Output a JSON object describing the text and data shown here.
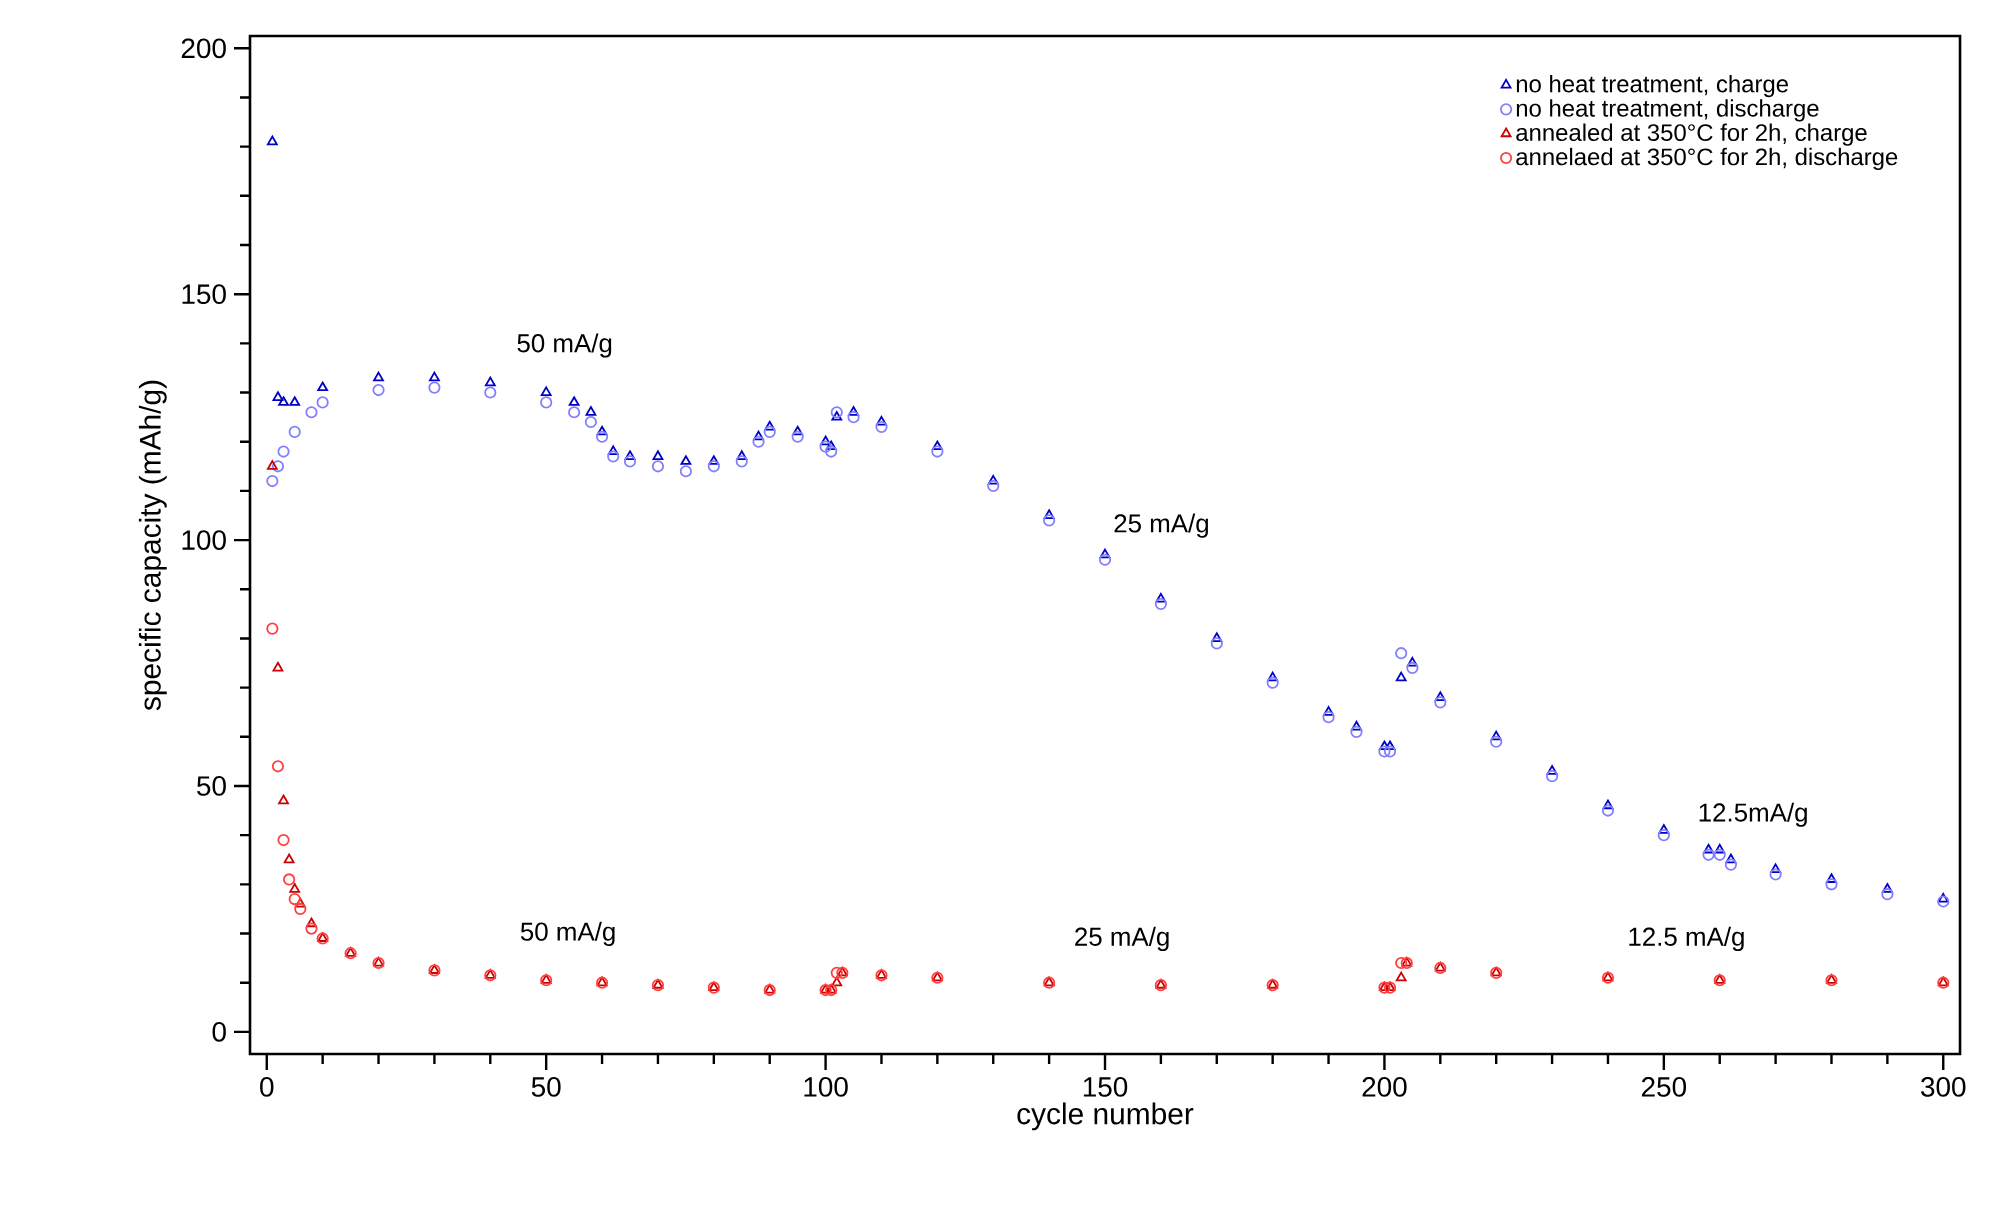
{
  "chart_data": {
    "type": "scatter",
    "xlabel": "cycle number",
    "ylabel": "specific capacity (mAh/g)",
    "xlim": [
      -3,
      303
    ],
    "ylim": [
      -4.5,
      202.5
    ],
    "xticks": [
      0,
      50,
      100,
      150,
      200,
      250,
      300
    ],
    "yticks": [
      0,
      50,
      100,
      150,
      200
    ],
    "legend": "top right",
    "grid": false,
    "series": [
      {
        "name": "no heat treatment, charge",
        "color": "#0000c8",
        "marker": "triangle",
        "x": [
          1,
          2,
          3,
          5,
          10,
          20,
          30,
          40,
          50,
          55,
          58,
          60,
          62,
          65,
          70,
          75,
          80,
          85,
          88,
          90,
          95,
          100,
          101,
          102,
          105,
          110,
          120,
          130,
          140,
          150,
          160,
          170,
          180,
          190,
          195,
          200,
          201,
          203,
          205,
          210,
          220,
          230,
          240,
          250,
          258,
          260,
          262,
          270,
          280,
          290,
          300
        ],
        "values": [
          181,
          129,
          128,
          128,
          131,
          133,
          133,
          132,
          130,
          128,
          126,
          122,
          118,
          117,
          117,
          116,
          116,
          117,
          121,
          123,
          122,
          120,
          119,
          125,
          126,
          124,
          119,
          112,
          105,
          97,
          88,
          80,
          72,
          65,
          62,
          58,
          58,
          72,
          75,
          68,
          60,
          53,
          46,
          41,
          37,
          37,
          35,
          33,
          31,
          29,
          27
        ]
      },
      {
        "name": "no heat treatment, discharge",
        "color": "#8080ff",
        "marker": "circle",
        "x": [
          1,
          2,
          3,
          5,
          8,
          10,
          20,
          30,
          40,
          50,
          55,
          58,
          60,
          62,
          65,
          70,
          75,
          80,
          85,
          88,
          90,
          95,
          100,
          101,
          102,
          105,
          110,
          120,
          130,
          140,
          150,
          160,
          170,
          180,
          190,
          195,
          200,
          201,
          203,
          205,
          210,
          220,
          230,
          240,
          250,
          258,
          260,
          262,
          270,
          280,
          290,
          300
        ],
        "values": [
          112,
          115,
          118,
          122,
          126,
          128,
          130.5,
          131,
          130,
          128,
          126,
          124,
          121,
          117,
          116,
          115,
          114,
          115,
          116,
          120,
          122,
          121,
          119,
          118,
          126,
          125,
          123,
          118,
          111,
          104,
          96,
          87,
          79,
          71,
          64,
          61,
          57,
          57,
          77,
          74,
          67,
          59,
          52,
          45,
          40,
          36,
          36,
          34,
          32,
          30,
          28,
          26.5
        ]
      },
      {
        "name": "annealed at 350°C for 2h, charge",
        "color": "#cc0000",
        "marker": "triangle",
        "x": [
          1,
          2,
          3,
          4,
          5,
          6,
          8,
          10,
          15,
          20,
          30,
          40,
          50,
          60,
          70,
          80,
          90,
          100,
          101,
          102,
          103,
          110,
          120,
          140,
          160,
          180,
          200,
          201,
          203,
          204,
          210,
          220,
          240,
          260,
          280,
          300
        ],
        "values": [
          115,
          74,
          47,
          35,
          29,
          26,
          22,
          19,
          16,
          14,
          12.5,
          11.5,
          10.5,
          10,
          9.5,
          9,
          8.5,
          8.5,
          8.5,
          10,
          12,
          11.5,
          11,
          10,
          9.5,
          9.5,
          9,
          9,
          11,
          14,
          13,
          12,
          11,
          10.5,
          10.5,
          10
        ]
      },
      {
        "name": "annelaed at 350°C for 2h, discharge",
        "color": "#ff4040",
        "marker": "circle",
        "x": [
          1,
          2,
          3,
          4,
          5,
          6,
          8,
          10,
          15,
          20,
          30,
          40,
          50,
          60,
          70,
          80,
          90,
          100,
          101,
          102,
          103,
          110,
          120,
          140,
          160,
          180,
          200,
          201,
          203,
          204,
          210,
          220,
          240,
          260,
          280,
          300
        ],
        "values": [
          82,
          54,
          39,
          31,
          27,
          25,
          21,
          19,
          16,
          14,
          12.5,
          11.5,
          10.5,
          10,
          9.5,
          9,
          8.5,
          8.5,
          8.5,
          12,
          12,
          11.5,
          11,
          10,
          9.5,
          9.5,
          9,
          9,
          14,
          14,
          13,
          12,
          11,
          10.5,
          10.5,
          10
        ]
      }
    ],
    "annotations": [
      "50 mA/g",
      "25 mA/g",
      "12.5mA/g",
      "50 mA/g",
      "25 mA/g",
      "12.5 mA/g"
    ]
  }
}
